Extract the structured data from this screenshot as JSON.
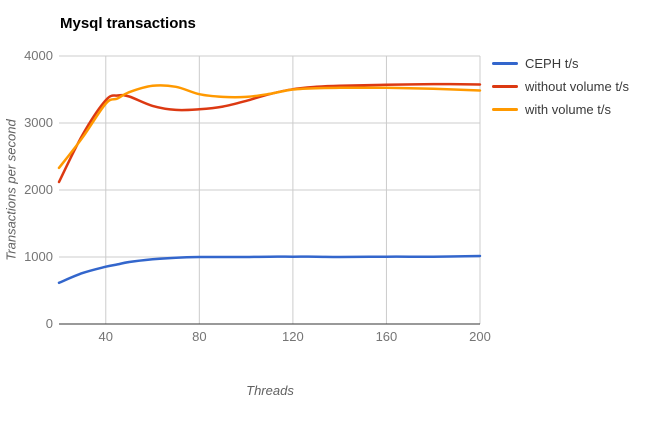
{
  "title": "Mysql transactions",
  "axes": {
    "x_title": "Threads",
    "y_title": "Transactions per second"
  },
  "legend": {
    "position": "right",
    "items": [
      "CEPH t/s",
      "without volume t/s",
      "with volume t/s"
    ]
  },
  "colors": {
    "series_blue": "#3366CC",
    "series_red": "#DC3912",
    "series_orange": "#FF9900",
    "gridline": "#cccccc",
    "axis_line": "#333333",
    "tick_text": "#757575",
    "title_text": "#000000"
  },
  "chart_data": {
    "type": "line",
    "title": "Mysql transactions",
    "xlabel": "Threads",
    "ylabel": "Transactions per second",
    "xlim": [
      20,
      200
    ],
    "ylim": [
      0,
      4000
    ],
    "x_ticks": [
      40,
      80,
      120,
      160,
      200
    ],
    "y_ticks": [
      0,
      1000,
      2000,
      3000,
      4000
    ],
    "grid": true,
    "legend_position": "right",
    "grid_color": "#cccccc",
    "axis_color": "#333333",
    "x": [
      20,
      30,
      40,
      45,
      50,
      60,
      70,
      80,
      90,
      100,
      110,
      120,
      130,
      140,
      160,
      180,
      200
    ],
    "series": [
      {
        "name": "CEPH t/s",
        "color": "#3366CC",
        "values": [
          615,
          760,
          855,
          890,
          925,
          965,
          990,
          1000,
          1000,
          1000,
          1005,
          1005,
          1005,
          1000,
          1005,
          1005,
          1015
        ]
      },
      {
        "name": "without volume t/s",
        "color": "#DC3912",
        "values": [
          2120,
          2820,
          3340,
          3410,
          3395,
          3255,
          3195,
          3205,
          3245,
          3330,
          3430,
          3505,
          3540,
          3555,
          3570,
          3580,
          3575
        ]
      },
      {
        "name": "with volume t/s",
        "color": "#FF9900",
        "values": [
          2330,
          2780,
          3290,
          3365,
          3460,
          3555,
          3540,
          3430,
          3390,
          3390,
          3435,
          3500,
          3520,
          3525,
          3525,
          3510,
          3485
        ]
      }
    ]
  }
}
